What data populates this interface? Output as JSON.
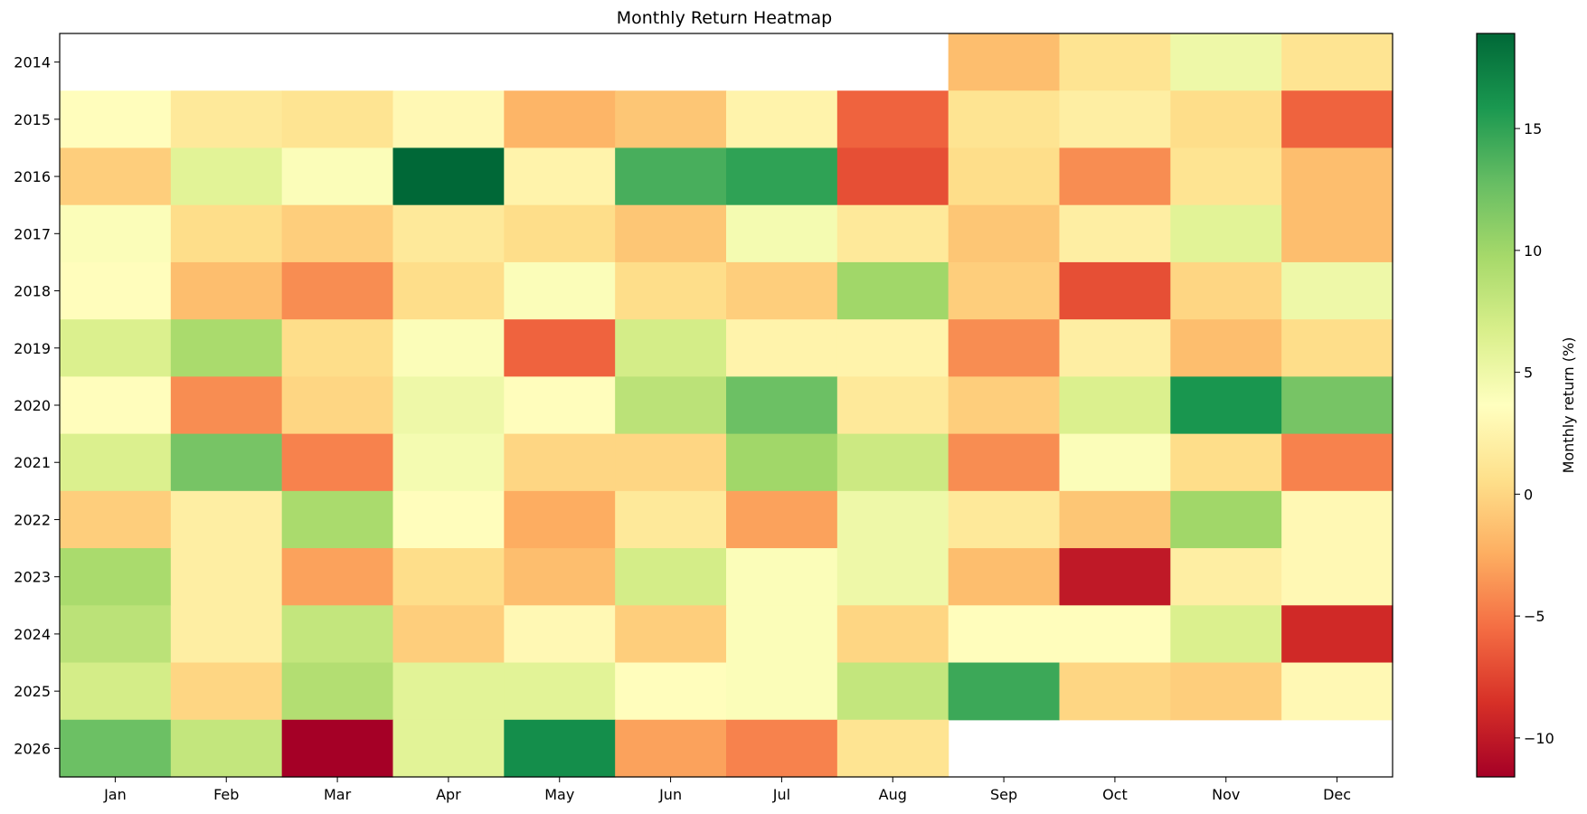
{
  "chart_data": {
    "type": "heatmap",
    "title": "Monthly Return Heatmap",
    "xlabel": "",
    "ylabel": "",
    "colorbar_label": "Monthly return (%)",
    "colormap": "RdYlGn",
    "vmin": -11.6,
    "vmax": 18.9,
    "colorbar_ticks": [
      "−10",
      "−5",
      "0",
      "5",
      "10",
      "15"
    ],
    "colorbar_tick_values": [
      -10,
      -5,
      0,
      5,
      10,
      15
    ],
    "x_categories": [
      "Jan",
      "Feb",
      "Mar",
      "Apr",
      "May",
      "Jun",
      "Jul",
      "Aug",
      "Sep",
      "Oct",
      "Nov",
      "Dec"
    ],
    "y_categories": [
      "2014",
      "2015",
      "2016",
      "2017",
      "2018",
      "2019",
      "2020",
      "2021",
      "2022",
      "2023",
      "2024",
      "2025",
      "2026"
    ],
    "values": [
      [
        null,
        null,
        null,
        null,
        null,
        null,
        null,
        null,
        -1.5,
        1.0,
        5.0,
        1.0
      ],
      [
        3.5,
        1.5,
        1.0,
        3.0,
        -2.0,
        -1.0,
        2.5,
        -6.0,
        1.0,
        2.0,
        0.5,
        -6.0
      ],
      [
        -0.5,
        6.0,
        4.0,
        18.9,
        2.5,
        14.0,
        15.0,
        -7.0,
        0.5,
        -4.0,
        1.0,
        -1.5
      ],
      [
        4.0,
        0.5,
        -0.5,
        1.5,
        0.5,
        -1.0,
        4.5,
        1.5,
        -1.0,
        2.0,
        6.0,
        -1.5
      ],
      [
        3.5,
        -1.5,
        -4.0,
        0.5,
        4.0,
        0.5,
        -0.5,
        10.0,
        -0.5,
        -7.0,
        0.0,
        5.0
      ],
      [
        6.5,
        9.5,
        0.5,
        4.0,
        -6.0,
        7.0,
        2.5,
        2.5,
        -4.0,
        2.0,
        -1.5,
        0.5
      ],
      [
        3.5,
        -4.0,
        0.0,
        5.0,
        3.5,
        8.5,
        12.5,
        1.5,
        -0.5,
        6.5,
        16.0,
        12.0
      ],
      [
        6.5,
        12.0,
        -4.5,
        4.5,
        0.0,
        0.0,
        10.0,
        7.5,
        -4.0,
        4.0,
        0.5,
        -4.5
      ],
      [
        -0.5,
        2.0,
        9.5,
        3.5,
        -2.5,
        1.5,
        -3.0,
        5.0,
        1.5,
        -1.0,
        10.0,
        3.0
      ],
      [
        9.5,
        2.0,
        -3.0,
        0.5,
        -1.5,
        7.0,
        4.0,
        5.0,
        -1.5,
        -10.0,
        2.0,
        3.0
      ],
      [
        8.5,
        2.0,
        8.0,
        -0.5,
        3.0,
        -0.5,
        4.0,
        0.0,
        3.5,
        3.5,
        6.5,
        -9.0
      ],
      [
        7.0,
        0.0,
        9.0,
        6.0,
        6.0,
        3.5,
        4.0,
        8.0,
        14.5,
        0.0,
        -0.5,
        3.0
      ],
      [
        12.5,
        8.0,
        -11.6,
        6.0,
        16.5,
        -3.0,
        -4.5,
        1.0,
        null,
        null,
        null,
        null
      ]
    ]
  }
}
